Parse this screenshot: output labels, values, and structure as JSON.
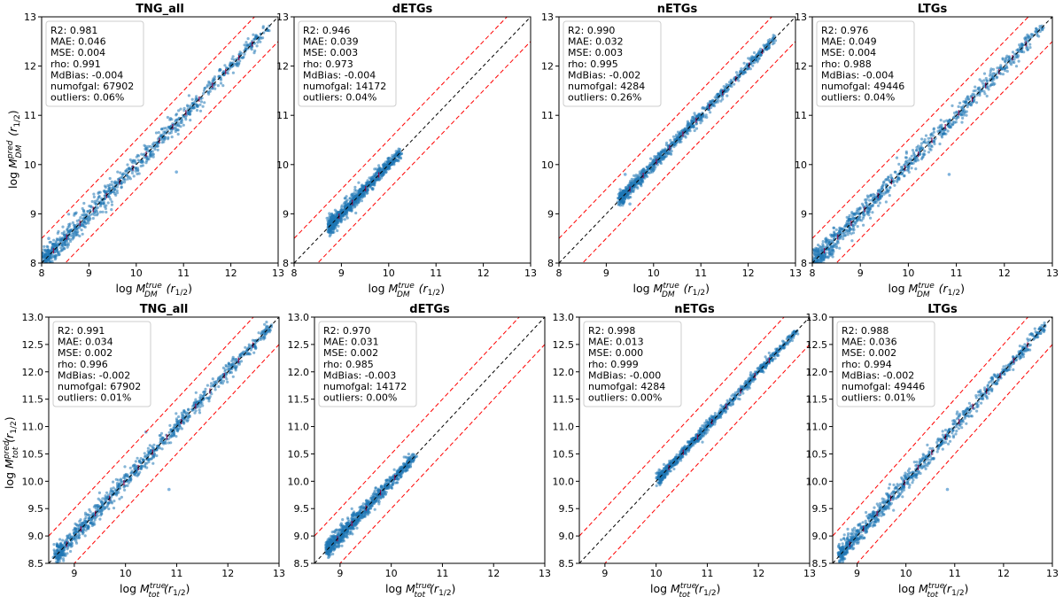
{
  "chart_data": [
    {
      "type": "scatter",
      "title": "TNG_all",
      "xlabel": "log M_DM^true(r_1/2)",
      "ylabel": "log M_DM^pred(r_1/2)",
      "xlim": [
        8,
        13
      ],
      "ylim": [
        8,
        13
      ],
      "xticks": [
        "8",
        "9",
        "10",
        "11",
        "12",
        "13"
      ],
      "yticks": [
        "8",
        "9",
        "10",
        "11",
        "12",
        "13"
      ],
      "cloud": {
        "x_range": [
          8.05,
          12.8
        ],
        "spread": 0.12
      },
      "outliers": [
        [
          10.85,
          9.85
        ],
        [
          8.15,
          8.5
        ]
      ],
      "stats": [
        "R2:  0.981",
        "MAE:  0.046",
        "MSE:  0.004",
        "rho:  0.991",
        "MdBias: -0.004",
        "numofgal: 67902",
        "outliers: 0.06%"
      ],
      "grid": false,
      "reference_lines": [
        "1:1 (black dashed)",
        "±0.5 dex (red dashed)"
      ]
    },
    {
      "type": "scatter",
      "title": "dETGs",
      "xlabel": "log M_DM^true(r_1/2)",
      "ylabel": "",
      "xlim": [
        8,
        13
      ],
      "ylim": [
        8,
        13
      ],
      "xticks": [
        "8",
        "9",
        "10",
        "11",
        "12",
        "13"
      ],
      "yticks": [
        "8",
        "9",
        "10",
        "11",
        "12",
        "13"
      ],
      "cloud": {
        "x_range": [
          8.75,
          10.25
        ],
        "spread": 0.08
      },
      "outliers": [],
      "stats": [
        "R2:  0.946",
        "MAE:  0.039",
        "MSE:  0.003",
        "rho:  0.973",
        "MdBias: -0.004",
        "numofgal: 14172",
        "outliers: 0.04%"
      ],
      "grid": false,
      "reference_lines": [
        "1:1 (black dashed)",
        "±0.5 dex (red dashed)"
      ]
    },
    {
      "type": "scatter",
      "title": "nETGs",
      "xlabel": "log M_DM^true(r_1/2)",
      "ylabel": "",
      "xlim": [
        8,
        13
      ],
      "ylim": [
        8,
        13
      ],
      "xticks": [
        "8",
        "9",
        "10",
        "11",
        "12",
        "13"
      ],
      "yticks": [
        "8",
        "9",
        "10",
        "11",
        "12",
        "13"
      ],
      "cloud": {
        "x_range": [
          9.3,
          12.6
        ],
        "spread": 0.07
      },
      "outliers": [
        [
          9.4,
          9.8
        ],
        [
          9.5,
          9.2
        ]
      ],
      "stats": [
        "R2:  0.990",
        "MAE:  0.032",
        "MSE:  0.003",
        "rho:  0.995",
        "MdBias: -0.002",
        "numofgal: 4284",
        "outliers: 0.26%"
      ],
      "grid": false,
      "reference_lines": [
        "1:1 (black dashed)",
        "±0.5 dex (red dashed)"
      ]
    },
    {
      "type": "scatter",
      "title": "LTGs",
      "xlabel": "log M_DM^true(r_1/2)",
      "ylabel": "",
      "xlim": [
        8,
        13
      ],
      "ylim": [
        8,
        13
      ],
      "xticks": [
        "8",
        "9",
        "10",
        "11",
        "12",
        "13"
      ],
      "yticks": [
        "8",
        "9",
        "10",
        "11",
        "12",
        "13"
      ],
      "cloud": {
        "x_range": [
          8.05,
          12.8
        ],
        "spread": 0.12
      },
      "outliers": [
        [
          10.85,
          9.8
        ]
      ],
      "stats": [
        "R2:  0.976",
        "MAE:  0.049",
        "MSE:  0.004",
        "rho:  0.988",
        "MdBias: -0.004",
        "numofgal: 49446",
        "outliers: 0.04%"
      ],
      "grid": false,
      "reference_lines": [
        "1:1 (black dashed)",
        "±0.5 dex (red dashed)"
      ]
    },
    {
      "type": "scatter",
      "title": "TNG_all",
      "xlabel": "log M_tot^true(r_1/2)",
      "ylabel": "log M_tot^pred(r_1/2)",
      "xlim": [
        8.5,
        13
      ],
      "ylim": [
        8.5,
        13
      ],
      "xticks": [
        "9",
        "10",
        "11",
        "12",
        "13"
      ],
      "yticks": [
        "8.5",
        "9.0",
        "9.5",
        "10.0",
        "10.5",
        "11.0",
        "11.5",
        "12.0",
        "12.5",
        "13.0"
      ],
      "cloud": {
        "x_range": [
          8.65,
          12.85
        ],
        "spread": 0.09
      },
      "outliers": [
        [
          10.85,
          9.85
        ],
        [
          10.4,
          10.9
        ]
      ],
      "stats": [
        "R2:  0.991",
        "MAE:  0.034",
        "MSE:  0.002",
        "rho:  0.996",
        "MdBias: -0.002",
        "numofgal: 67902",
        "outliers: 0.01%"
      ],
      "grid": false,
      "reference_lines": [
        "1:1 (black dashed)",
        "±0.5 dex (red dashed)"
      ]
    },
    {
      "type": "scatter",
      "title": "dETGs",
      "xlabel": "log M_tot^true(r_1/2)",
      "ylabel": "",
      "xlim": [
        8.5,
        13
      ],
      "ylim": [
        8.5,
        13
      ],
      "xticks": [
        "9",
        "10",
        "11",
        "12",
        "13"
      ],
      "yticks": [
        "8.5",
        "9.0",
        "9.5",
        "10.0",
        "10.5",
        "11.0",
        "11.5",
        "12.0",
        "12.5",
        "13.0"
      ],
      "cloud": {
        "x_range": [
          8.75,
          10.45
        ],
        "spread": 0.08
      },
      "outliers": [],
      "stats": [
        "R2:  0.970",
        "MAE:  0.031",
        "MSE:  0.002",
        "rho:  0.985",
        "MdBias: -0.003",
        "numofgal: 14172",
        "outliers: 0.00%"
      ],
      "grid": false,
      "reference_lines": [
        "1:1 (black dashed)",
        "±0.5 dex (red dashed)"
      ]
    },
    {
      "type": "scatter",
      "title": "nETGs",
      "xlabel": "log M_tot^true(r_1/2)",
      "ylabel": "",
      "xlim": [
        8.5,
        13
      ],
      "ylim": [
        8.5,
        13
      ],
      "xticks": [
        "9",
        "10",
        "11",
        "12",
        "13"
      ],
      "yticks": [
        "8.5",
        "9.0",
        "9.5",
        "10.0",
        "10.5",
        "11.0",
        "11.5",
        "12.0",
        "12.5",
        "13.0"
      ],
      "cloud": {
        "x_range": [
          10.05,
          12.75
        ],
        "spread": 0.05
      },
      "outliers": [],
      "stats": [
        "R2:  0.998",
        "MAE:  0.013",
        "MSE:  0.000",
        "rho:  0.999",
        "MdBias: -0.000",
        "numofgal: 4284",
        "outliers: 0.00%"
      ],
      "grid": false,
      "reference_lines": [
        "1:1 (black dashed)",
        "±0.5 dex (red dashed)"
      ]
    },
    {
      "type": "scatter",
      "title": "LTGs",
      "xlabel": "log M_tot^true(r_1/2)",
      "ylabel": "",
      "xlim": [
        8.5,
        13
      ],
      "ylim": [
        8.5,
        13
      ],
      "xticks": [
        "9",
        "10",
        "11",
        "12",
        "13"
      ],
      "yticks": [
        "8.5",
        "9.0",
        "9.5",
        "10.0",
        "10.5",
        "11.0",
        "11.5",
        "12.0",
        "12.5",
        "13.0"
      ],
      "cloud": {
        "x_range": [
          8.65,
          12.85
        ],
        "spread": 0.09
      },
      "outliers": [
        [
          10.85,
          9.85
        ]
      ],
      "stats": [
        "R2:  0.988",
        "MAE:  0.036",
        "MSE:  0.002",
        "rho:  0.994",
        "MdBias: -0.002",
        "numofgal: 49446",
        "outliers: 0.01%"
      ],
      "grid": false,
      "reference_lines": [
        "1:1 (black dashed)",
        "±0.5 dex (red dashed)"
      ]
    }
  ],
  "colors": {
    "scatter": "#1f77b4",
    "scatter_faint": "#7fb3dd",
    "identity_line": "#000000",
    "band_line": "#ff0000",
    "median_marker": "#8b0a50",
    "stats_box_border": "#cccccc"
  }
}
